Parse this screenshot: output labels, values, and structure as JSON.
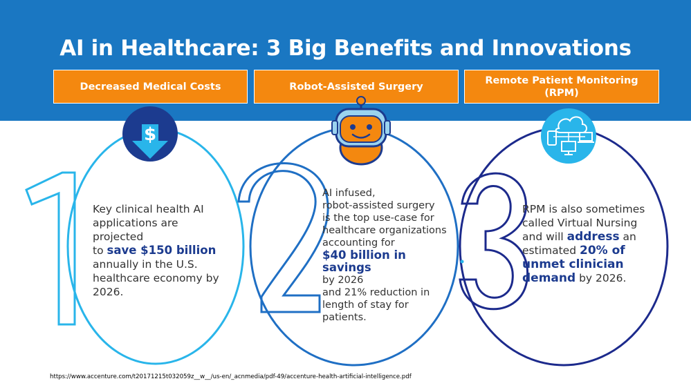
{
  "title": "AI in Healthcare: 3 Big Benefits and Innovations",
  "colors": {
    "banner": "#1a77c2",
    "tab": "#f4880f",
    "highlight": "#1c3b8f",
    "outline1": "#29b5ea",
    "outline2": "#1f6fc4",
    "outline3": "#1c2a8c"
  },
  "benefits": [
    {
      "heading": "Decreased Medical Costs",
      "icon": "dollar-down-arrow-icon",
      "numeral": "1",
      "text": {
        "l1": "Key clinical health AI",
        "l2": "applications are projected",
        "l3_pre": "to ",
        "l3_hl": "save $150 billion",
        "l4": "annually in the U.S.",
        "l5": "healthcare economy by",
        "l6": "2026."
      }
    },
    {
      "heading": "Robot-Assisted Surgery",
      "icon": "robot-icon",
      "numeral": "2",
      "text": {
        "l1": "AI infused,",
        "l2": "robot-assisted surgery",
        "l3": "is the top use-case for",
        "l4": "healthcare organizations",
        "l5": "accounting for",
        "l6_hl": "$40 billion in savings",
        "l7": "by 2026",
        "l8": "and 21% reduction in",
        "l9": "length of stay for",
        "l10": "patients."
      }
    },
    {
      "heading_l1": "Remote Patient Monitoring",
      "heading_l2": "(RPM)",
      "icon": "cloud-devices-icon",
      "numeral": "3",
      "text": {
        "l1": "RPM is also sometimes",
        "l2": "called Virtual Nursing",
        "l3_pre": "and will ",
        "l3_hl": "address",
        "l3_post": " an",
        "l4_pre": "estimated ",
        "l4_hl": "20% of",
        "l5_hl": "unmet clinician",
        "l6_hl": "demand",
        "l6_post": " by 2026."
      }
    }
  ],
  "source": "https://www.accenture.com/t20171215t032059z__w__/us-en/_acnmedia/pdf-49/accenture-health-artificial-intelligence.pdf"
}
